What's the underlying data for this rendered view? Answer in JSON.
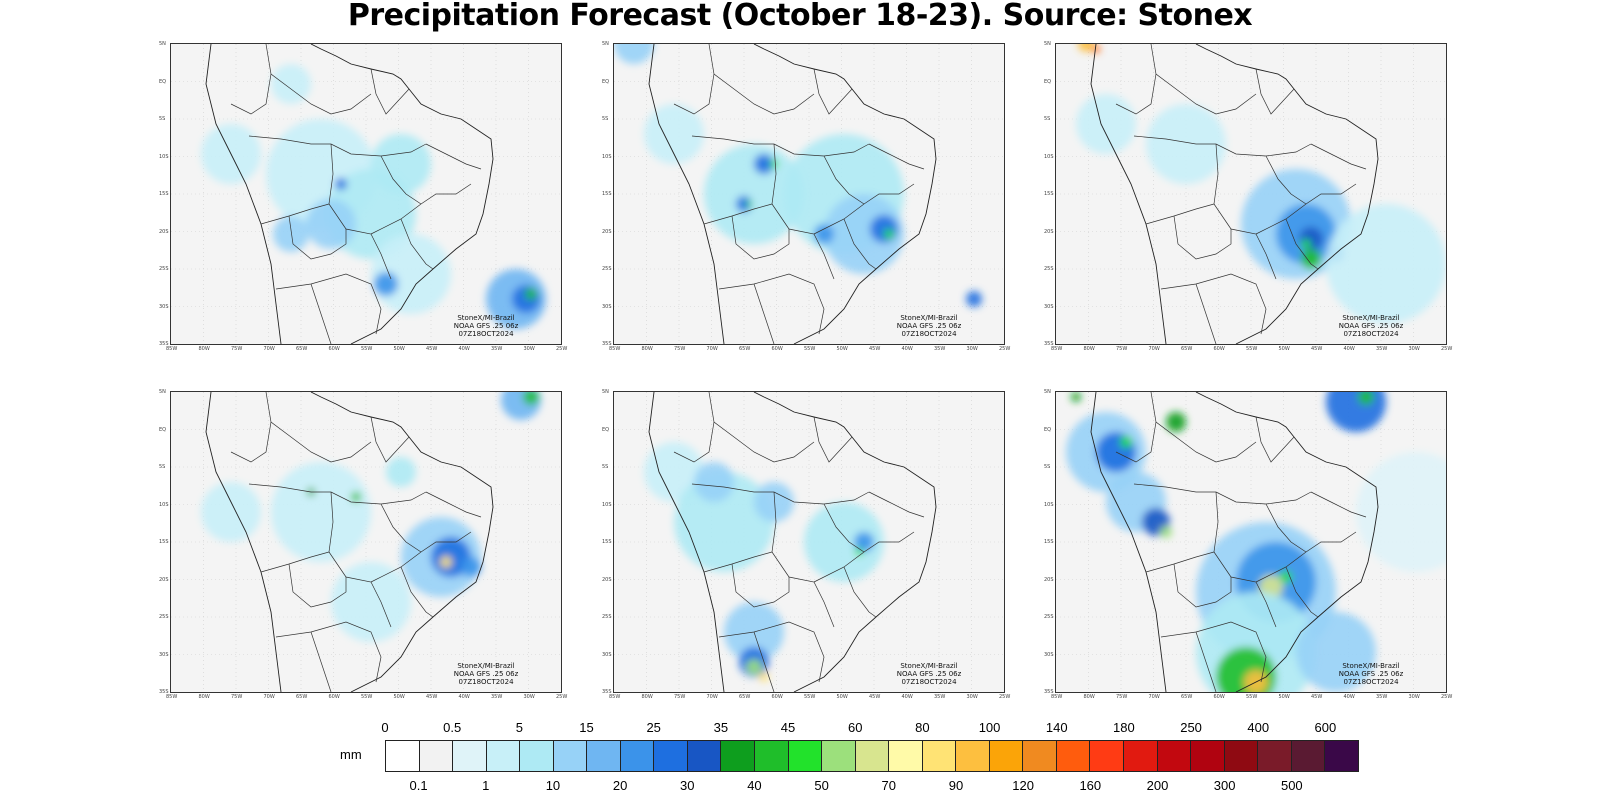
{
  "title": "Precipitation Forecast (October 18-23). Source: Stonex",
  "map_axes": {
    "lat_labels": [
      "5N",
      "EQ",
      "5S",
      "10S",
      "15S",
      "20S",
      "25S",
      "30S",
      "35S"
    ],
    "lon_labels": [
      "85W",
      "80W",
      "75W",
      "70W",
      "65W",
      "60W",
      "55W",
      "50W",
      "45W",
      "40W",
      "35W",
      "30W",
      "25W"
    ]
  },
  "panels": [
    {
      "credit": [
        "StoneX/MI-Brazil",
        "NOAA GFS .25 06z",
        "07Z18OCT2024"
      ]
    },
    {
      "credit": [
        "StoneX/MI-Brazil",
        "NOAA GFS .25 06z",
        "07Z18OCT2024"
      ]
    },
    {
      "credit": [
        "StoneX/MI-Brazil",
        "NOAA GFS .25 06z",
        "07Z18OCT2024"
      ]
    },
    {
      "credit": [
        "StoneX/MI-Brazil",
        "NOAA GFS .25 06z",
        "07Z18OCT2024"
      ]
    },
    {
      "credit": [
        "StoneX/MI-Brazil",
        "NOAA GFS .25 06z",
        "07Z18OCT2024"
      ]
    },
    {
      "credit": [
        "StoneX/MI-Brazil",
        "NOAA GFS .25 06z",
        "07Z18OCT2024"
      ]
    }
  ],
  "colorbar": {
    "unit": "mm",
    "top_labels": [
      "0",
      "0.5",
      "5",
      "15",
      "25",
      "35",
      "45",
      "60",
      "80",
      "100",
      "140",
      "180",
      "250",
      "400",
      "600"
    ],
    "bottom_labels": [
      "0.1",
      "1",
      "10",
      "20",
      "30",
      "40",
      "50",
      "70",
      "90",
      "120",
      "160",
      "200",
      "300",
      "500"
    ],
    "colors": [
      "#ffffff",
      "#f2f2f2",
      "#dff3f8",
      "#c8f0f8",
      "#aeeaf4",
      "#97d2f7",
      "#6fb6f2",
      "#3b93ea",
      "#1e6fe0",
      "#1856c4",
      "#0e9e1e",
      "#1fbe2a",
      "#22e22b",
      "#9ce07c",
      "#d8e58f",
      "#fffaa8",
      "#ffe374",
      "#fdbf3f",
      "#fba408",
      "#f08a20",
      "#ff5c0d",
      "#ff3b14",
      "#e11a10",
      "#c2080f",
      "#b00310",
      "#8f0a12",
      "#7a1b29",
      "#5a1a32",
      "#3a0848"
    ]
  }
}
